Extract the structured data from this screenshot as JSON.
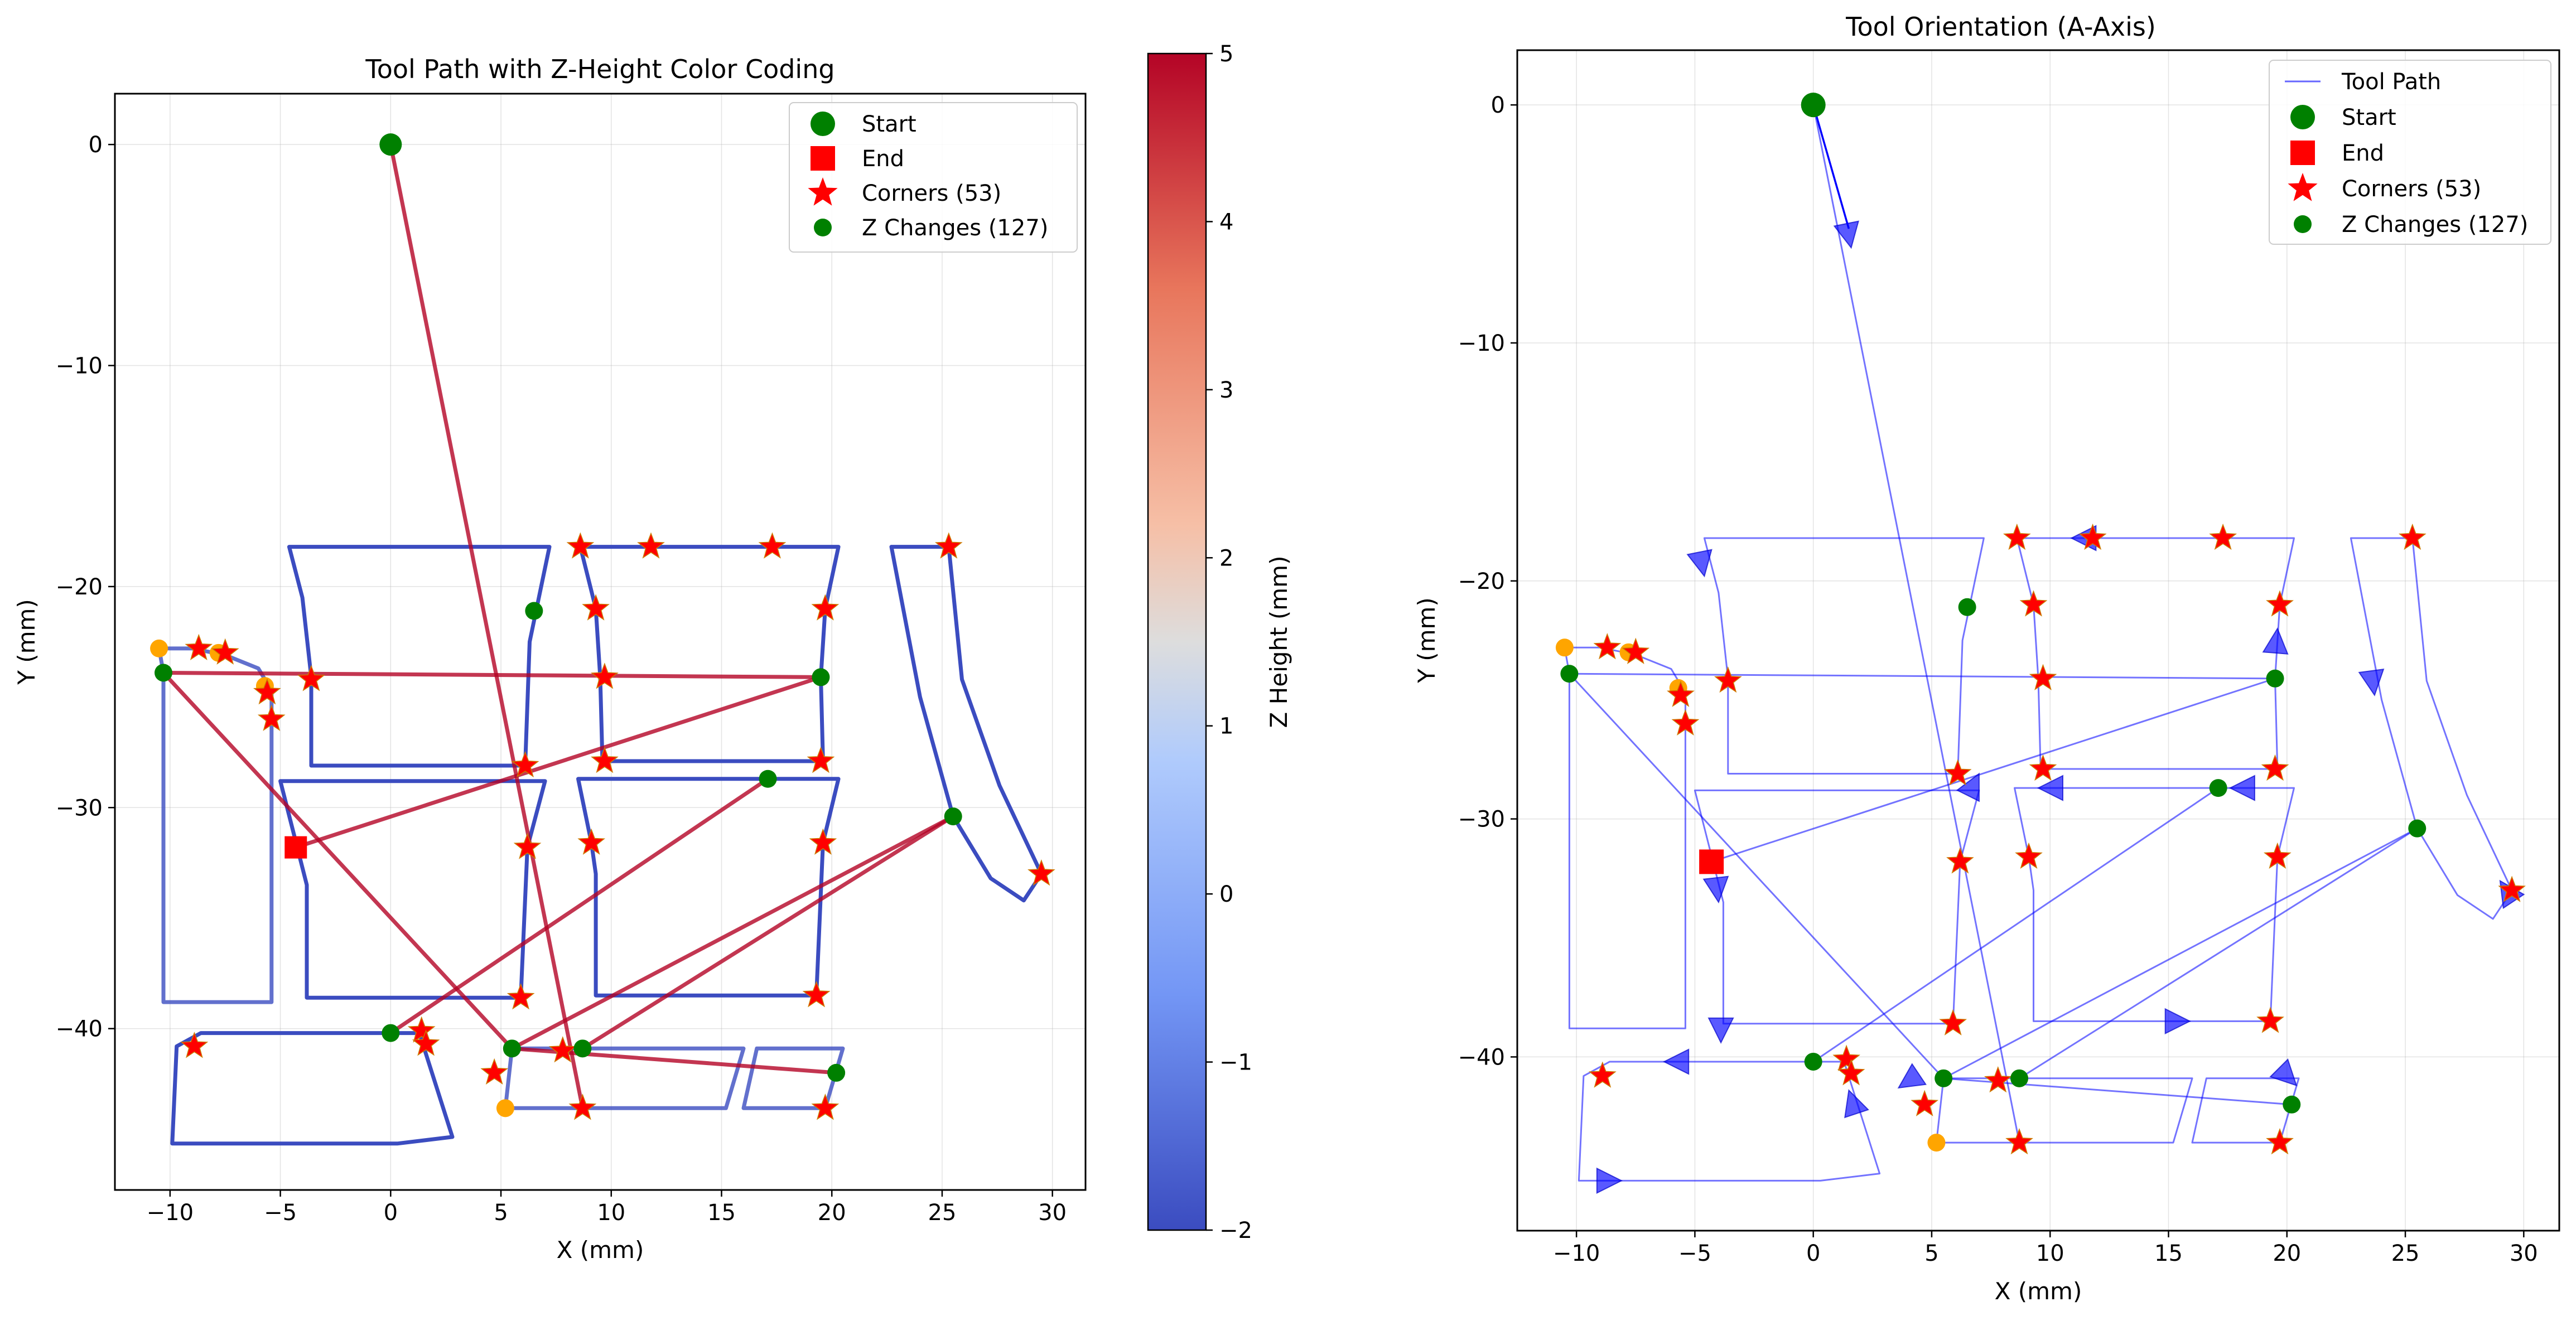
{
  "chart_data": [
    {
      "type": "scatter",
      "title": "Tool Path with Z-Height Color Coding",
      "xlabel": "X (mm)",
      "ylabel": "Y (mm)",
      "xlim": [
        -12.5,
        31.5
      ],
      "ylim": [
        -47.3,
        2.3
      ],
      "xticks": [
        -10,
        -5,
        0,
        5,
        10,
        15,
        20,
        25,
        30
      ],
      "yticks": [
        0,
        -10,
        -20,
        -30,
        -40
      ],
      "grid": true,
      "legend_position": "top-right",
      "legend": [
        "Start",
        "End",
        "Corners (53)",
        "Z Changes (127)"
      ],
      "colorbar": {
        "label": "Z Height (mm)",
        "range": [
          -2,
          5
        ],
        "ticks": [
          5,
          4,
          3,
          2,
          1,
          0,
          -1,
          -2
        ],
        "colormap": "coolwarm"
      },
      "start": [
        0,
        0
      ],
      "end": [
        -4.3,
        -31.8
      ],
      "rapid_moves": [
        [
          [
            0,
            0
          ],
          [
            8.7,
            -43.6
          ]
        ],
        [
          [
            -10.3,
            -23.9
          ],
          [
            19.5,
            -24.1
          ]
        ],
        [
          [
            -4.3,
            -31.8
          ],
          [
            19.5,
            -24.1
          ]
        ],
        [
          [
            -10.3,
            -23.9
          ],
          [
            5.5,
            -40.9
          ]
        ],
        [
          [
            5.5,
            -40.9
          ],
          [
            20.2,
            -42.0
          ]
        ],
        [
          [
            0,
            -40.2
          ],
          [
            17.1,
            -28.7
          ]
        ],
        [
          [
            8.7,
            -40.9
          ],
          [
            25.5,
            -30.4
          ]
        ],
        [
          [
            5.5,
            -40.9
          ],
          [
            25.5,
            -30.4
          ]
        ]
      ],
      "cut_paths": [
        [
          [
            -10.5,
            -22.8
          ],
          [
            -9.0,
            -22.8
          ],
          [
            -7.5,
            -23.1
          ],
          [
            -6.0,
            -23.7
          ],
          [
            -5.4,
            -24.7
          ],
          [
            -5.4,
            -38.8
          ],
          [
            -10.3,
            -38.8
          ],
          [
            -10.3,
            -23.9
          ]
        ],
        [
          [
            -4.6,
            -18.2
          ],
          [
            4.8,
            -18.2
          ],
          [
            6.2,
            -18.2
          ],
          [
            7.2,
            -18.2
          ],
          [
            6.3,
            -22.5
          ],
          [
            6.1,
            -28.1
          ],
          [
            -3.6,
            -28.1
          ],
          [
            -3.6,
            -24.1
          ],
          [
            -4.0,
            -20.5
          ],
          [
            -4.6,
            -18.2
          ]
        ],
        [
          [
            8.6,
            -18.2
          ],
          [
            11.8,
            -18.2
          ],
          [
            17.3,
            -18.2
          ],
          [
            20.3,
            -18.2
          ],
          [
            19.7,
            -21.0
          ],
          [
            19.5,
            -24.1
          ],
          [
            19.6,
            -27.9
          ],
          [
            9.6,
            -27.9
          ],
          [
            9.5,
            -24.1
          ],
          [
            9.3,
            -21.0
          ],
          [
            8.6,
            -18.2
          ]
        ],
        [
          [
            -5.0,
            -28.8
          ],
          [
            7.0,
            -28.8
          ],
          [
            6.2,
            -31.8
          ],
          [
            5.9,
            -38.6
          ],
          [
            -3.8,
            -38.6
          ],
          [
            -3.8,
            -33.5
          ],
          [
            -5.0,
            -28.8
          ]
        ],
        [
          [
            8.5,
            -28.7
          ],
          [
            17.1,
            -28.7
          ],
          [
            20.3,
            -28.7
          ],
          [
            19.6,
            -31.6
          ],
          [
            19.3,
            -38.5
          ],
          [
            9.3,
            -38.5
          ],
          [
            9.3,
            -33.0
          ],
          [
            9.1,
            -31.6
          ],
          [
            8.5,
            -28.7
          ]
        ],
        [
          [
            22.7,
            -18.2
          ],
          [
            25.3,
            -18.2
          ],
          [
            25.9,
            -24.2
          ],
          [
            27.6,
            -29.0
          ],
          [
            29.5,
            -33.0
          ],
          [
            28.7,
            -34.2
          ],
          [
            27.2,
            -33.2
          ],
          [
            25.5,
            -30.4
          ],
          [
            24.0,
            -25.0
          ],
          [
            22.7,
            -18.2
          ]
        ],
        [
          [
            -9.7,
            -40.8
          ],
          [
            -8.6,
            -40.2
          ],
          [
            -1.5,
            -40.2
          ],
          [
            0,
            -40.2
          ],
          [
            1.3,
            -40.2
          ],
          [
            2.8,
            -44.9
          ],
          [
            0.3,
            -45.2
          ],
          [
            -9.9,
            -45.2
          ],
          [
            -9.7,
            -40.8
          ]
        ],
        [
          [
            5.5,
            -40.9
          ],
          [
            8.7,
            -40.9
          ],
          [
            16.0,
            -40.9
          ],
          [
            15.2,
            -43.6
          ],
          [
            8.7,
            -43.6
          ],
          [
            5.2,
            -43.6
          ],
          [
            5.5,
            -40.9
          ]
        ],
        [
          [
            16.6,
            -40.9
          ],
          [
            20.5,
            -40.9
          ],
          [
            19.7,
            -43.6
          ],
          [
            16.0,
            -43.6
          ],
          [
            16.6,
            -40.9
          ]
        ]
      ],
      "corners": [
        [
          -8.7,
          -22.8
        ],
        [
          -7.5,
          -23.0
        ],
        [
          -5.6,
          -24.8
        ],
        [
          -5.4,
          -26.0
        ],
        [
          -3.6,
          -24.2
        ],
        [
          8.6,
          -18.2
        ],
        [
          11.8,
          -18.2
        ],
        [
          17.3,
          -18.2
        ],
        [
          25.3,
          -18.2
        ],
        [
          9.3,
          -21.0
        ],
        [
          9.7,
          -24.1
        ],
        [
          9.7,
          -27.9
        ],
        [
          19.7,
          -21.0
        ],
        [
          19.5,
          -27.9
        ],
        [
          6.1,
          -28.1
        ],
        [
          6.2,
          -31.8
        ],
        [
          9.1,
          -31.6
        ],
        [
          19.6,
          -31.6
        ],
        [
          29.5,
          -33.0
        ],
        [
          5.9,
          -38.6
        ],
        [
          19.3,
          -38.5
        ],
        [
          -8.9,
          -40.8
        ],
        [
          1.4,
          -40.1
        ],
        [
          1.6,
          -40.7
        ],
        [
          4.7,
          -42.0
        ],
        [
          7.8,
          -41.0
        ],
        [
          8.7,
          -43.6
        ],
        [
          19.7,
          -43.6
        ]
      ],
      "z_changes": [
        [
          -10.3,
          -23.9
        ],
        [
          6.5,
          -21.1
        ],
        [
          19.5,
          -24.1
        ],
        [
          17.1,
          -28.7
        ],
        [
          25.5,
          -30.4
        ],
        [
          0,
          -40.2
        ],
        [
          5.5,
          -40.9
        ],
        [
          8.7,
          -40.9
        ],
        [
          20.2,
          -42.0
        ]
      ],
      "z_changes_orange": [
        [
          -10.5,
          -22.8
        ],
        [
          -7.8,
          -23.0
        ],
        [
          -5.7,
          -24.5
        ],
        [
          5.2,
          -43.6
        ]
      ]
    },
    {
      "type": "line",
      "title": "Tool Orientation (A-Axis)",
      "xlabel": "X (mm)",
      "ylabel": "Y (mm)",
      "xlim": [
        -12.5,
        31.5
      ],
      "ylim": [
        -47.3,
        2.3
      ],
      "xticks": [
        -10,
        -5,
        0,
        5,
        10,
        15,
        20,
        25,
        30
      ],
      "yticks": [
        0,
        -10,
        -20,
        -30,
        -40
      ],
      "grid": true,
      "legend_position": "top-right",
      "legend": [
        "Tool Path",
        "Start",
        "End",
        "Corners (53)",
        "Z Changes (127)"
      ],
      "arrows": [
        [
          [
            1.3,
            -4.5
          ],
          [
            1.6,
            -6.0
          ]
        ],
        [
          [
            -4.8,
            -18.8
          ],
          [
            -4.6,
            -19.8
          ]
        ],
        [
          [
            12.2,
            -18.2
          ],
          [
            10.9,
            -18.2
          ]
        ],
        [
          [
            23.5,
            -23.3
          ],
          [
            23.7,
            -24.8
          ]
        ],
        [
          [
            19.5,
            -23.2
          ],
          [
            19.6,
            -22.0
          ]
        ],
        [
          [
            6.6,
            -28.9
          ],
          [
            7.0,
            -28.1
          ]
        ],
        [
          [
            10.5,
            -28.7
          ],
          [
            9.5,
            -28.7
          ]
        ],
        [
          [
            18.6,
            -28.7
          ],
          [
            17.6,
            -28.7
          ]
        ],
        [
          [
            -4.1,
            -32.6
          ],
          [
            -4.0,
            -33.5
          ]
        ],
        [
          [
            -3.9,
            -38.4
          ],
          [
            -3.9,
            -39.4
          ]
        ],
        [
          [
            14.6,
            -38.5
          ],
          [
            15.9,
            -38.5
          ]
        ],
        [
          [
            -5.3,
            -40.2
          ],
          [
            -6.3,
            -40.2
          ]
        ],
        [
          [
            1.9,
            -42.6
          ],
          [
            1.5,
            -41.4
          ]
        ],
        [
          [
            -9.1,
            -45.2
          ],
          [
            -8.1,
            -45.2
          ]
        ],
        [
          [
            4.2,
            -40.9
          ],
          [
            3.6,
            -41.3
          ]
        ],
        [
          [
            19.6,
            -40.4
          ],
          [
            20.4,
            -41.2
          ]
        ],
        [
          [
            29.4,
            -33.2
          ],
          [
            29.0,
            -32.6
          ]
        ]
      ],
      "corner_count_label": "Corners (53)",
      "z_change_count_label": "Z Changes (127)"
    }
  ]
}
